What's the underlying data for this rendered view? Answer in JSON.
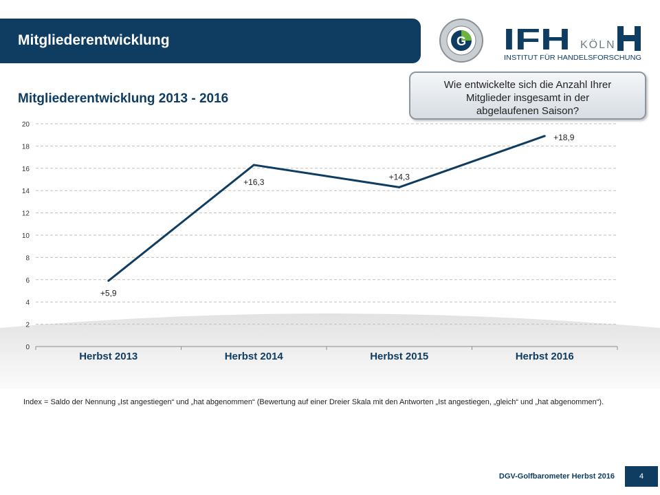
{
  "header": {
    "title": "Mitgliederentwicklung"
  },
  "logos": {
    "seal_text": "DEUTSCHER GOLF VERBAND",
    "seal_letter": "G",
    "ifh_main": "IFH",
    "ifh_city": "KÖLN",
    "ifh_sub": "INSTITUT FÜR HANDELSFORSCHUNG"
  },
  "question": {
    "lines": [
      "Wie entwickelte sich die Anzahl Ihrer",
      "Mitglieder insgesamt in der",
      "abgelaufenen Saison?"
    ]
  },
  "chart_data": {
    "type": "line",
    "title": "Mitgliederentwicklung  2013 - 2016",
    "categories": [
      "Herbst 2013",
      "Herbst 2014",
      "Herbst 2015",
      "Herbst 2016"
    ],
    "values": [
      5.9,
      16.3,
      14.3,
      18.9
    ],
    "data_labels": [
      "+5,9",
      "+16,3",
      "+14,3",
      "+18,9"
    ],
    "ylim": [
      0,
      20
    ],
    "yticks": [
      0,
      2,
      4,
      6,
      8,
      10,
      12,
      14,
      16,
      18,
      20
    ],
    "grid": true,
    "line_color": "#0f3d62"
  },
  "footnote": "Index = Saldo der Nennung „Ist angestiegen“ und „hat abgenommen“ (Bewertung auf einer Dreier Skala mit den Antworten „Ist angestiegen, „gleich“ und „hat abgenommen“).",
  "footer": {
    "label": "DGV-Golfbarometer Herbst 2016",
    "page": "4"
  },
  "colors": {
    "brand": "#0f3d62",
    "grid": "#bfbfbf"
  }
}
